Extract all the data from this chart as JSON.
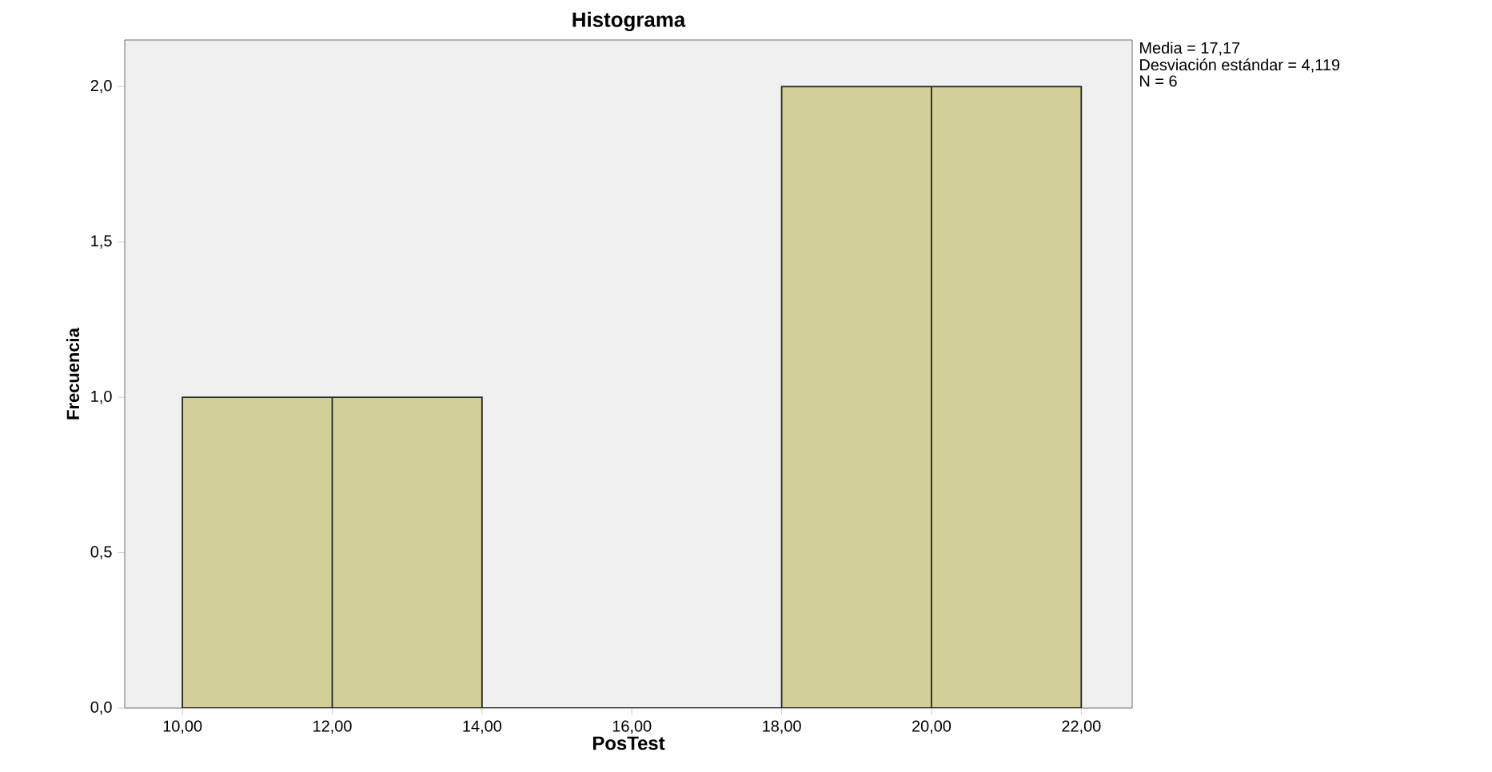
{
  "chart_data": {
    "type": "histogram",
    "title": "Histograma",
    "xlabel": "PosTest",
    "ylabel": "Frecuencia",
    "bins": [
      10,
      12,
      14,
      16,
      18,
      20,
      22
    ],
    "values": [
      1,
      1,
      0,
      0,
      2,
      2
    ],
    "color": "#d3cf98",
    "xlim": [
      9.23,
      22.68
    ],
    "ylim": [
      0,
      2.15
    ],
    "xticks": [
      {
        "value": 10,
        "label": "10,00"
      },
      {
        "value": 12,
        "label": "12,00"
      },
      {
        "value": 14,
        "label": "14,00"
      },
      {
        "value": 16,
        "label": "16,00"
      },
      {
        "value": 18,
        "label": "18,00"
      },
      {
        "value": 20,
        "label": "20,00"
      },
      {
        "value": 22,
        "label": "22,00"
      }
    ],
    "yticks": [
      {
        "value": 0,
        "label": "0,0"
      },
      {
        "value": 0.5,
        "label": "0,5"
      },
      {
        "value": 1,
        "label": "1,0"
      },
      {
        "value": 1.5,
        "label": "1,5"
      },
      {
        "value": 2,
        "label": "2,0"
      }
    ],
    "annotations": [
      "Media = 17,17",
      "Desviación estándar = 4,119",
      "N = 6"
    ]
  }
}
